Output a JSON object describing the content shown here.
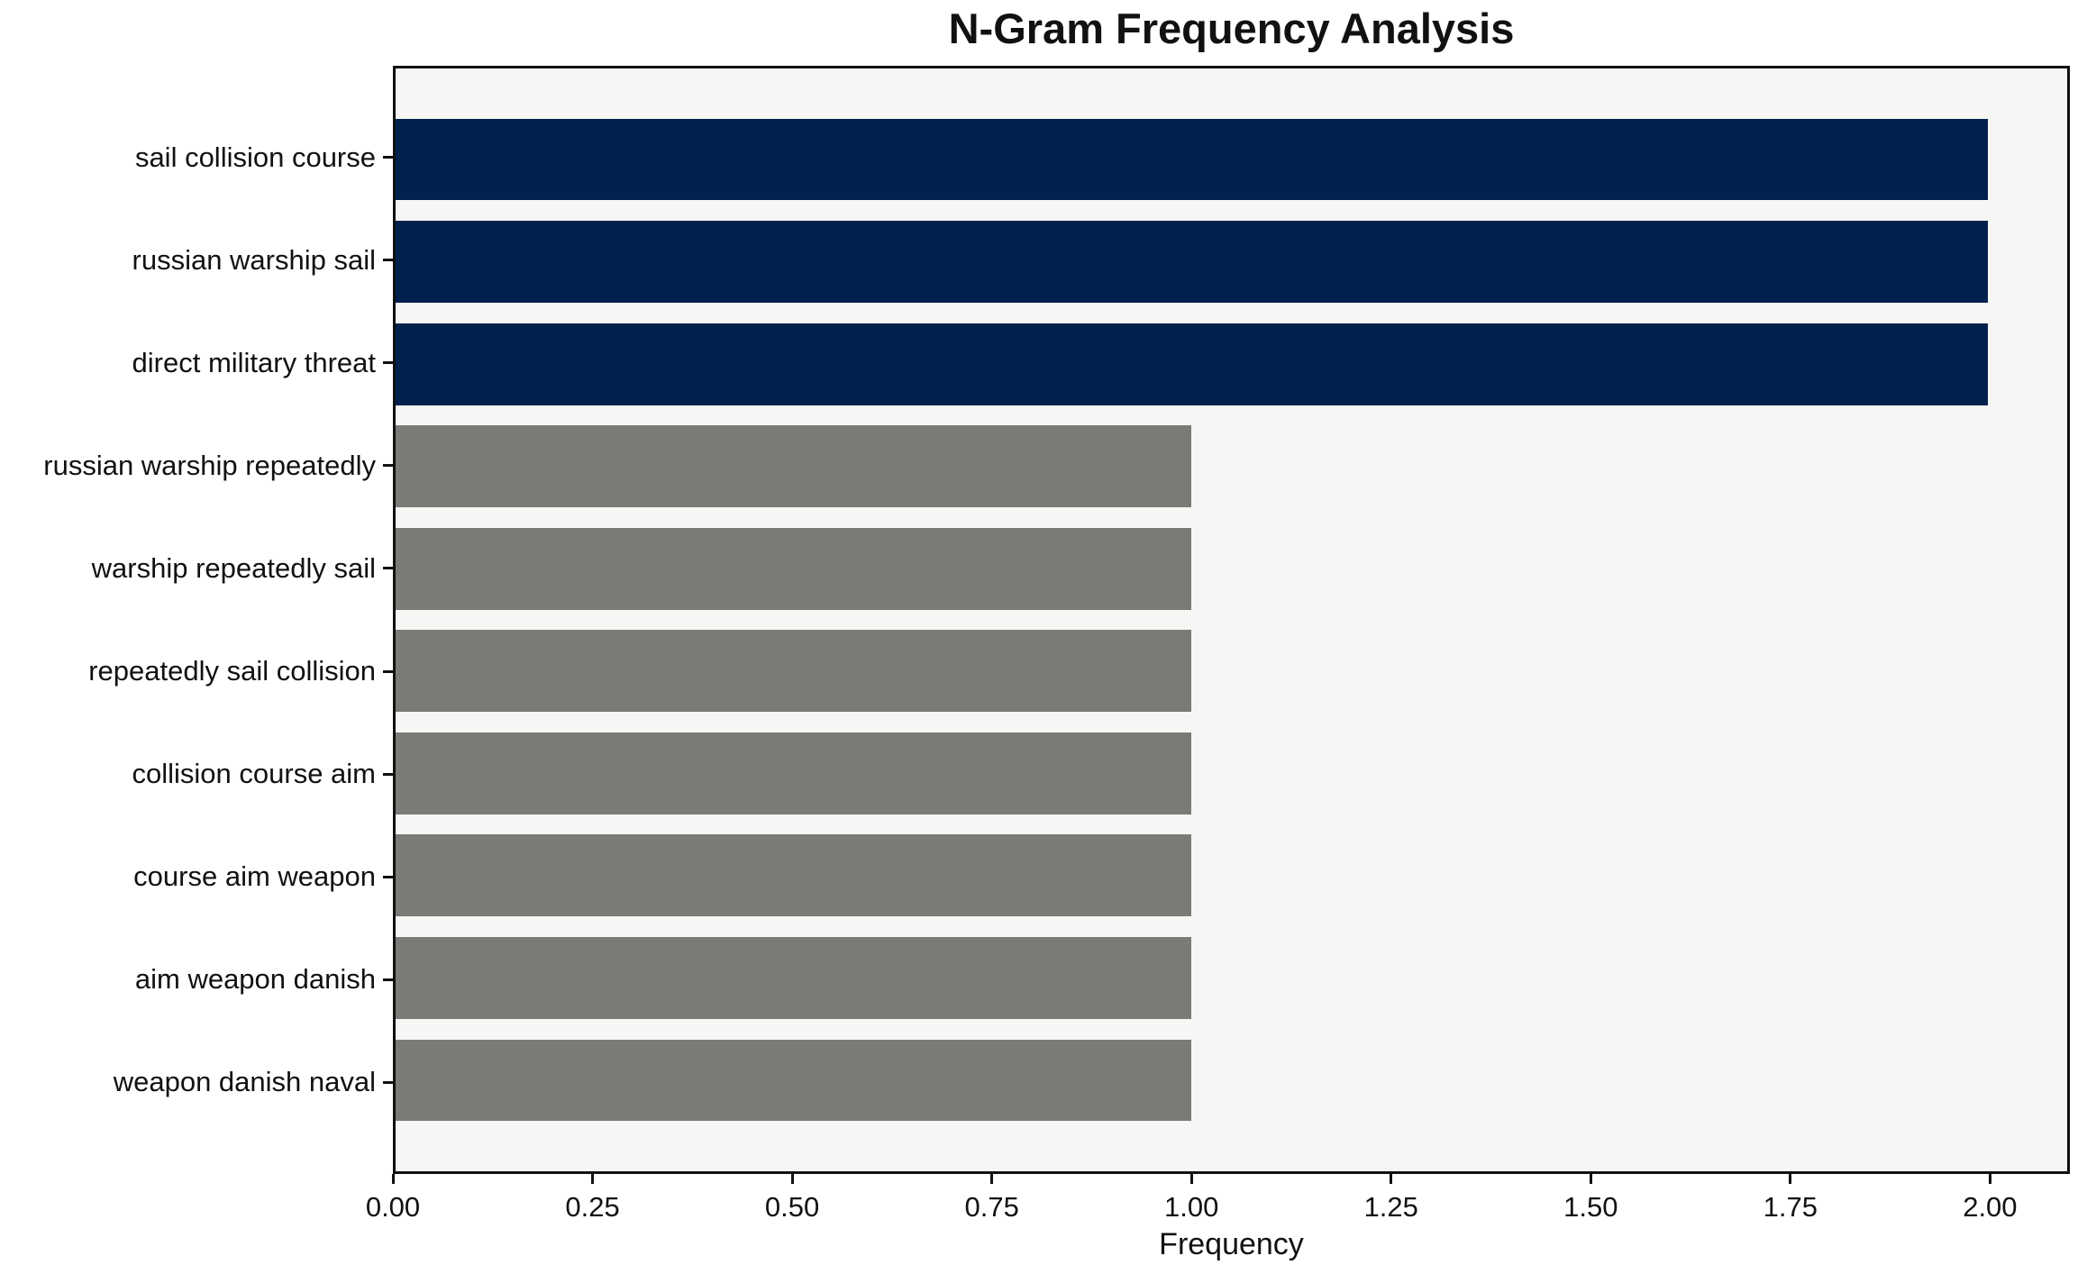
{
  "chart_data": {
    "type": "bar",
    "orientation": "horizontal",
    "title": "N-Gram Frequency Analysis",
    "xlabel": "Frequency",
    "ylabel": "",
    "categories": [
      "sail collision course",
      "russian warship sail",
      "direct military threat",
      "russian warship repeatedly",
      "warship repeatedly sail",
      "repeatedly sail collision",
      "collision course aim",
      "course aim weapon",
      "aim weapon danish",
      "weapon danish naval"
    ],
    "values": [
      2,
      2,
      2,
      1,
      1,
      1,
      1,
      1,
      1,
      1
    ],
    "bar_colors": [
      "#02224d",
      "#02224d",
      "#02224d",
      "#7a7a77",
      "#7a7a77",
      "#7a7a77",
      "#7a7a77",
      "#7a7a77",
      "#7a7a77",
      "#7a7a77"
    ],
    "xlim": [
      0,
      2.1
    ],
    "xticks": [
      "0.00",
      "0.25",
      "0.50",
      "0.75",
      "1.00",
      "1.25",
      "1.50",
      "1.75",
      "2.00"
    ],
    "grid": false,
    "legend": false,
    "colors": {
      "highlight": "#02224d",
      "muted": "#7a7a77",
      "plot_background": "#f6f6f5",
      "figure_background": "#ffffff",
      "spine": "#111111",
      "text": "#111111"
    }
  }
}
